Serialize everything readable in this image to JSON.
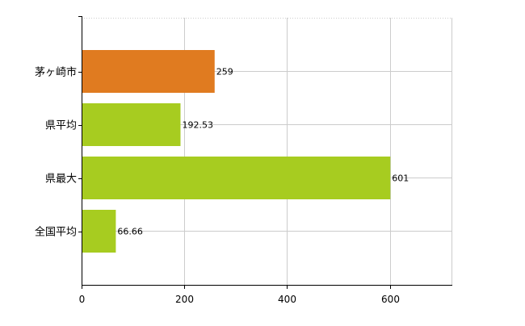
{
  "chart_data": {
    "type": "bar",
    "orientation": "horizontal",
    "title": "",
    "xlabel": "",
    "ylabel": "",
    "categories": [
      "茅ヶ崎市",
      "県平均",
      "県最大",
      "全国平均"
    ],
    "values": [
      259,
      192.53,
      601,
      66.66
    ],
    "value_labels": [
      "259",
      "192.53",
      "601",
      "66.66"
    ],
    "bar_colors": [
      "#e07b20",
      "#a7cc20",
      "#a7cc20",
      "#a7cc20"
    ],
    "xlim": [
      0,
      720
    ],
    "xticks": [
      0,
      200,
      400,
      600
    ],
    "xtick_labels": [
      "0",
      "200",
      "400",
      "600"
    ],
    "grid": true,
    "legend": "none"
  },
  "colors": {
    "gridline": "#cccccc",
    "axis": "#000000",
    "label_text": "#000000"
  }
}
